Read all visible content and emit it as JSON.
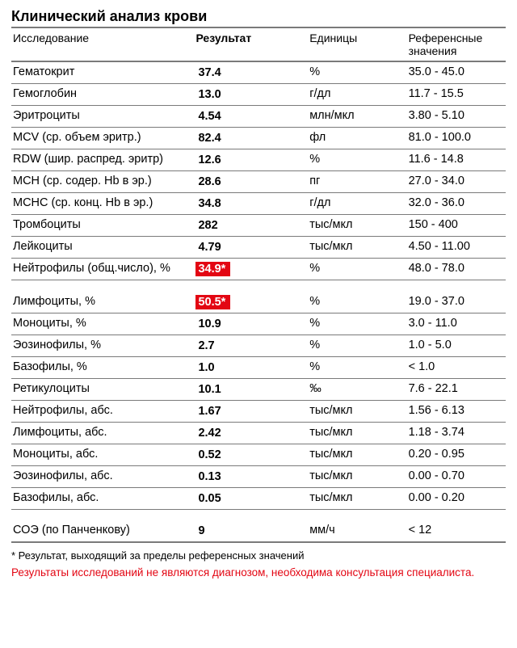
{
  "title": "Клинический анализ крови",
  "columns": {
    "name": "Исследование",
    "result": "Результат",
    "unit": "Единицы",
    "ref": "Референсные значения"
  },
  "colors": {
    "flag_bg": "#e30613",
    "flag_text": "#ffffff",
    "border": "#7a7a7a",
    "disclaimer": "#e30613"
  },
  "rows": [
    {
      "name": "Гематокрит",
      "result": "37.4",
      "unit": "%",
      "ref": "35.0 - 45.0",
      "flag": false
    },
    {
      "name": "Гемоглобин",
      "result": "13.0",
      "unit": "г/дл",
      "ref": "11.7 - 15.5",
      "flag": false
    },
    {
      "name": "Эритроциты",
      "result": "4.54",
      "unit": "млн/мкл",
      "ref": "3.80 - 5.10",
      "flag": false
    },
    {
      "name": "MCV (ср. объем эритр.)",
      "result": "82.4",
      "unit": "фл",
      "ref": "81.0 - 100.0",
      "flag": false
    },
    {
      "name": "RDW (шир. распред. эритр)",
      "result": "12.6",
      "unit": "%",
      "ref": "11.6 - 14.8",
      "flag": false
    },
    {
      "name": "MCH (ср. содер. Hb в эр.)",
      "result": "28.6",
      "unit": "пг",
      "ref": "27.0 - 34.0",
      "flag": false
    },
    {
      "name": "MCHC (ср. конц. Hb в эр.)",
      "result": "34.8",
      "unit": "г/дл",
      "ref": "32.0 - 36.0",
      "flag": false
    },
    {
      "name": "Тромбоциты",
      "result": "282",
      "unit": "тыс/мкл",
      "ref": "150 - 400",
      "flag": false
    },
    {
      "name": "Лейкоциты",
      "result": "4.79",
      "unit": "тыс/мкл",
      "ref": "4.50 - 11.00",
      "flag": false
    },
    {
      "name": "Нейтрофилы (общ.число), %",
      "result": "34.9*",
      "unit": "%",
      "ref": "48.0 - 78.0",
      "flag": true,
      "spacer_after": true
    },
    {
      "name": "Лимфоциты, %",
      "result": "50.5*",
      "unit": "%",
      "ref": "19.0 - 37.0",
      "flag": true
    },
    {
      "name": "Моноциты, %",
      "result": "10.9",
      "unit": "%",
      "ref": "3.0 - 11.0",
      "flag": false
    },
    {
      "name": "Эозинофилы, %",
      "result": "2.7",
      "unit": "%",
      "ref": "1.0 - 5.0",
      "flag": false
    },
    {
      "name": "Базофилы, %",
      "result": "1.0",
      "unit": "%",
      "ref": "< 1.0",
      "flag": false
    },
    {
      "name": "Ретикулоциты",
      "result": "10.1",
      "unit": "‰",
      "ref": "7.6 - 22.1",
      "flag": false
    },
    {
      "name": "Нейтрофилы, абс.",
      "result": "1.67",
      "unit": "тыс/мкл",
      "ref": "1.56 - 6.13",
      "flag": false
    },
    {
      "name": "Лимфоциты, абс.",
      "result": "2.42",
      "unit": "тыс/мкл",
      "ref": "1.18 - 3.74",
      "flag": false
    },
    {
      "name": "Моноциты, абс.",
      "result": "0.52",
      "unit": "тыс/мкл",
      "ref": "0.20 - 0.95",
      "flag": false
    },
    {
      "name": "Эозинофилы, абс.",
      "result": "0.13",
      "unit": "тыс/мкл",
      "ref": "0.00 - 0.70",
      "flag": false
    },
    {
      "name": "Базофилы, абс.",
      "result": "0.05",
      "unit": "тыс/мкл",
      "ref": "0.00 - 0.20",
      "flag": false,
      "spacer_after": true
    },
    {
      "name": "СОЭ (по Панченкову)",
      "result": "9",
      "unit": "мм/ч",
      "ref": "< 12",
      "flag": false,
      "last": true
    }
  ],
  "footnote": "* Результат, выходящий за пределы референсных значений",
  "disclaimer": "Результаты исследований не являются диагнозом, необходима консультация специалиста."
}
